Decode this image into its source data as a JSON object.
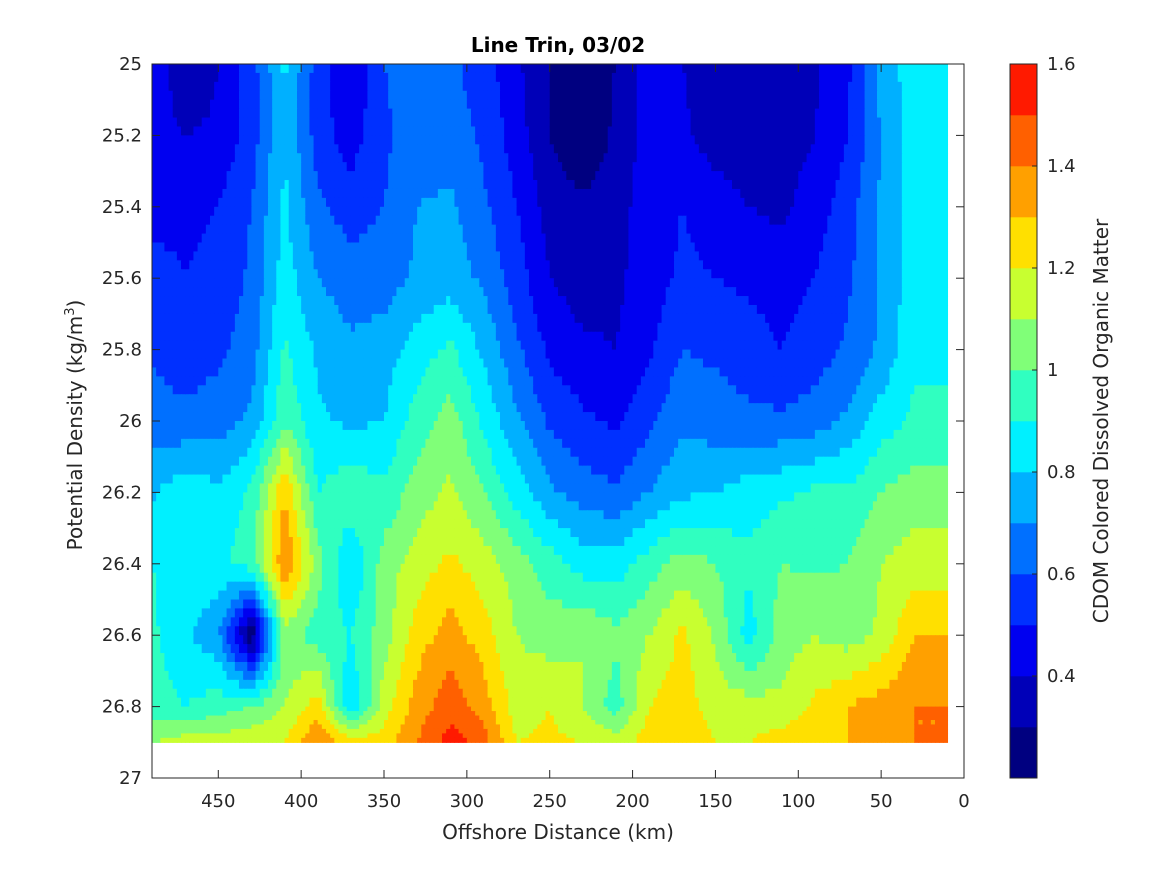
{
  "chart_data": {
    "type": "heatmap",
    "subtype": "filled-contour",
    "title": "Line Trin, 03/02",
    "xlabel": "Offshore Distance (km)",
    "ylabel_base": "Potential Density (kg/m",
    "ylabel_sup": "3",
    "ylabel_close": ")",
    "colorbar_label": "CDOM Colored Dissolved Organic Matter",
    "x_reversed": true,
    "xlim": [
      0,
      490
    ],
    "ylim": [
      25,
      27
    ],
    "y_reversed": true,
    "x_ticks": [
      450,
      400,
      350,
      300,
      250,
      200,
      150,
      100,
      50,
      0
    ],
    "x_tick_labels": [
      "450",
      "400",
      "350",
      "300",
      "250",
      "200",
      "150",
      "100",
      "50",
      "0"
    ],
    "y_ticks": [
      25,
      25.2,
      25.4,
      25.6,
      25.8,
      26,
      26.2,
      26.4,
      26.6,
      26.8,
      27
    ],
    "y_tick_labels": [
      "25",
      "25.2",
      "25.4",
      "25.6",
      "25.8",
      "26",
      "26.2",
      "26.4",
      "26.6",
      "26.8",
      "27"
    ],
    "colorbar_range": [
      0.2,
      1.6
    ],
    "colorbar_ticks": [
      0.4,
      0.6,
      0.8,
      1,
      1.2,
      1.4,
      1.6
    ],
    "colorbar_tick_labels": [
      "0.4",
      "0.6",
      "0.8",
      "1",
      "1.2",
      "1.4",
      "1.6"
    ],
    "contour_levels": [
      0.2,
      0.3,
      0.4,
      0.5,
      0.6,
      0.7,
      0.8,
      0.9,
      1.0,
      1.1,
      1.2,
      1.3,
      1.4,
      1.5,
      1.6
    ],
    "level_colors": [
      "#000080",
      "#0000b8",
      "#0000f0",
      "#0030ff",
      "#0070ff",
      "#00b0ff",
      "#00f0ff",
      "#30ffc0",
      "#80ff78",
      "#c8ff30",
      "#ffe000",
      "#ffa000",
      "#ff6000",
      "#ff1a00",
      "#c00000"
    ],
    "data_x_extent": [
      10,
      490
    ],
    "data_y_extent": [
      25,
      26.9
    ],
    "grid": {
      "x": [
        490,
        470,
        450,
        430,
        410,
        390,
        370,
        350,
        330,
        310,
        290,
        270,
        250,
        230,
        210,
        190,
        170,
        150,
        130,
        110,
        90,
        70,
        50,
        30,
        10
      ],
      "y": [
        25.0,
        25.2,
        25.4,
        25.6,
        25.8,
        26.0,
        26.2,
        26.4,
        26.6,
        26.8,
        26.9
      ],
      "z": [
        [
          0.5,
          0.3,
          0.4,
          0.55,
          0.82,
          0.55,
          0.4,
          0.6,
          0.65,
          0.62,
          0.55,
          0.42,
          0.3,
          0.25,
          0.3,
          0.45,
          0.4,
          0.35,
          0.4,
          0.35,
          0.38,
          0.48,
          0.75,
          0.85,
          0.85
        ],
        [
          0.45,
          0.4,
          0.42,
          0.55,
          0.8,
          0.55,
          0.45,
          0.58,
          0.65,
          0.65,
          0.58,
          0.45,
          0.3,
          0.22,
          0.32,
          0.45,
          0.42,
          0.35,
          0.35,
          0.35,
          0.4,
          0.5,
          0.7,
          0.85,
          0.85
        ],
        [
          0.45,
          0.48,
          0.5,
          0.6,
          0.82,
          0.62,
          0.55,
          0.6,
          0.7,
          0.72,
          0.62,
          0.5,
          0.35,
          0.32,
          0.36,
          0.45,
          0.5,
          0.45,
          0.4,
          0.38,
          0.45,
          0.55,
          0.72,
          0.85,
          0.85
        ],
        [
          0.55,
          0.5,
          0.52,
          0.62,
          0.85,
          0.7,
          0.65,
          0.65,
          0.72,
          0.75,
          0.68,
          0.55,
          0.4,
          0.35,
          0.38,
          0.45,
          0.52,
          0.5,
          0.48,
          0.45,
          0.5,
          0.58,
          0.72,
          0.85,
          0.85
        ],
        [
          0.58,
          0.55,
          0.58,
          0.65,
          0.92,
          0.78,
          0.72,
          0.75,
          0.85,
          0.92,
          0.78,
          0.62,
          0.48,
          0.42,
          0.4,
          0.48,
          0.6,
          0.58,
          0.55,
          0.5,
          0.55,
          0.62,
          0.72,
          0.88,
          0.88
        ],
        [
          0.65,
          0.62,
          0.65,
          0.72,
          0.98,
          0.82,
          0.78,
          0.8,
          0.95,
          1.05,
          0.88,
          0.72,
          0.58,
          0.52,
          0.48,
          0.58,
          0.68,
          0.65,
          0.62,
          0.62,
          0.65,
          0.72,
          0.85,
          0.92,
          0.92
        ],
        [
          0.78,
          0.88,
          0.82,
          0.92,
          1.3,
          0.9,
          0.98,
          0.92,
          1.05,
          1.12,
          1.0,
          0.85,
          0.72,
          0.65,
          0.62,
          0.7,
          0.78,
          0.8,
          0.85,
          0.88,
          0.92,
          0.92,
          1.0,
          1.05,
          1.05
        ],
        [
          0.9,
          0.85,
          0.88,
          0.95,
          1.4,
          1.05,
          0.8,
          1.05,
          1.15,
          1.22,
          1.15,
          1.05,
          0.95,
          0.85,
          0.85,
          0.95,
          1.05,
          1.0,
          0.92,
          1.0,
          0.98,
          1.0,
          1.1,
          1.15,
          1.15
        ],
        [
          0.92,
          0.82,
          0.72,
          0.2,
          1.05,
          0.95,
          0.9,
          1.05,
          1.25,
          1.35,
          1.25,
          1.1,
          1.05,
          1.1,
          1.02,
          1.1,
          1.22,
          1.08,
          0.85,
          1.05,
          1.1,
          1.05,
          1.12,
          1.3,
          1.3
        ],
        [
          0.95,
          0.9,
          0.95,
          1.0,
          1.1,
          1.25,
          0.8,
          1.15,
          1.35,
          1.45,
          1.35,
          1.15,
          1.2,
          1.1,
          0.95,
          1.2,
          1.25,
          1.15,
          1.15,
          1.12,
          1.22,
          1.3,
          1.35,
          1.4,
          1.4
        ],
        [
          1.1,
          1.15,
          1.15,
          1.18,
          1.2,
          1.4,
          1.25,
          1.25,
          1.4,
          1.55,
          1.45,
          1.2,
          1.22,
          1.2,
          1.15,
          1.25,
          1.28,
          1.2,
          1.2,
          1.25,
          1.3,
          1.3,
          1.35,
          1.4,
          1.4
        ]
      ]
    }
  }
}
